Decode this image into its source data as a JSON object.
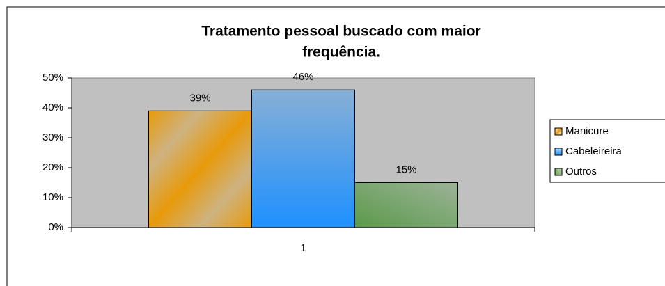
{
  "chart_data": {
    "type": "bar",
    "title_lines": [
      "Tratamento pessoal buscado com maior",
      "frequência."
    ],
    "categories": [
      "1"
    ],
    "series": [
      {
        "name": "Manicure",
        "color": "#e89a0a",
        "values": [
          39
        ],
        "value_labels": [
          "39%"
        ]
      },
      {
        "name": "Cabeleireira",
        "color": "#1e90ff",
        "values": [
          46
        ],
        "value_labels": [
          "46%"
        ]
      },
      {
        "name": "Outros",
        "color": "#5a9a4a",
        "values": [
          15
        ],
        "value_labels": [
          "15%"
        ]
      }
    ],
    "ylim": [
      0,
      50
    ],
    "yticks": [
      {
        "value": 0,
        "label": "0%"
      },
      {
        "value": 10,
        "label": "10%"
      },
      {
        "value": 20,
        "label": "20%"
      },
      {
        "value": 30,
        "label": "30%"
      },
      {
        "value": 40,
        "label": "40%"
      },
      {
        "value": 50,
        "label": "50%"
      }
    ],
    "legend": "right"
  }
}
